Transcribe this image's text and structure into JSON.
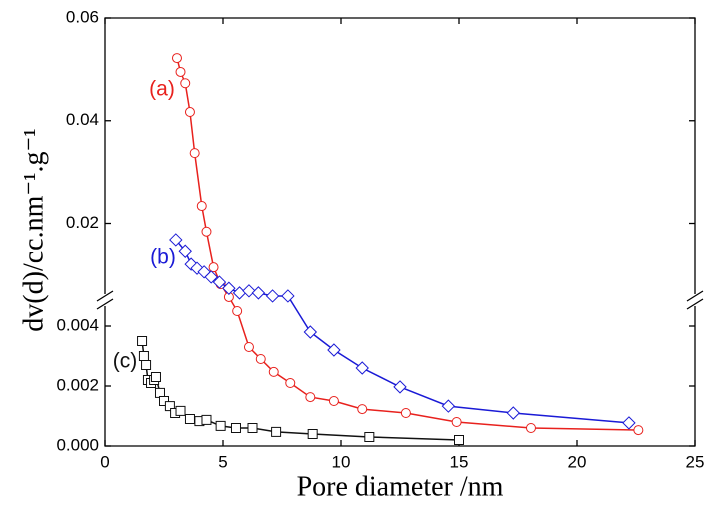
{
  "chart_data": {
    "type": "line",
    "xlabel": "Pore diameter /nm",
    "ylabel": "dv(d)/cc.nm⁻¹.g⁻¹",
    "xlim": [
      0,
      25
    ],
    "xticks": [
      0,
      5,
      10,
      15,
      20,
      25
    ],
    "ylim": [
      0,
      0.06
    ],
    "ybreak": [
      0.0048,
      0.0055
    ],
    "yticks": [
      {
        "value": 0,
        "label": "0.000"
      },
      {
        "value": 0.002,
        "label": "0.002"
      },
      {
        "value": 0.004,
        "label": "0.004"
      },
      0.02,
      0.04,
      0.06
    ],
    "series": [
      {
        "name": "(a)",
        "color": "#e8211d",
        "marker": "circle",
        "x": [
          3.05,
          3.2,
          3.4,
          3.6,
          3.8,
          4.1,
          4.3,
          4.6,
          4.9,
          5.25,
          5.6,
          6.1,
          6.6,
          7.15,
          7.85,
          8.7,
          9.7,
          10.9,
          12.75,
          14.9,
          18.05,
          22.6
        ],
        "values": [
          0.0522,
          0.0495,
          0.0473,
          0.0417,
          0.0337,
          0.0234,
          0.0184,
          0.0115,
          0.0082,
          0.0057,
          0.0045,
          0.0033,
          0.0029,
          0.00247,
          0.0021,
          0.00163,
          0.0015,
          0.00123,
          0.0011,
          0.0008,
          0.0006,
          0.00053
        ]
      },
      {
        "name": "(b)",
        "color": "#1a1ad6",
        "marker": "diamond",
        "x": [
          3.0,
          3.4,
          3.65,
          3.9,
          4.2,
          4.5,
          4.85,
          5.25,
          5.7,
          6.1,
          6.5,
          7.1,
          7.75,
          8.7,
          9.7,
          10.9,
          12.5,
          14.55,
          17.3,
          22.2
        ],
        "values": [
          0.0168,
          0.0146,
          0.0121,
          0.0113,
          0.0106,
          0.0096,
          0.0086,
          0.0074,
          0.0065,
          0.0069,
          0.0065,
          0.0059,
          0.0059,
          0.0038,
          0.0032,
          0.0026,
          0.00197,
          0.00133,
          0.0011,
          0.00077
        ]
      },
      {
        "name": "(c)",
        "color": "#111111",
        "marker": "square",
        "x": [
          1.57,
          1.65,
          1.74,
          1.82,
          1.95,
          2.08,
          2.16,
          2.33,
          2.5,
          2.75,
          2.97,
          3.2,
          3.6,
          4.0,
          4.3,
          4.9,
          5.55,
          6.25,
          7.25,
          8.8,
          11.2,
          15.0
        ],
        "values": [
          0.0035,
          0.003,
          0.0027,
          0.0022,
          0.0021,
          0.0022,
          0.0023,
          0.00177,
          0.0015,
          0.00133,
          0.0011,
          0.00117,
          0.0009,
          0.00083,
          0.00087,
          0.00067,
          0.0006,
          0.0006,
          0.00047,
          0.0004,
          0.0003,
          0.0002
        ]
      }
    ]
  }
}
